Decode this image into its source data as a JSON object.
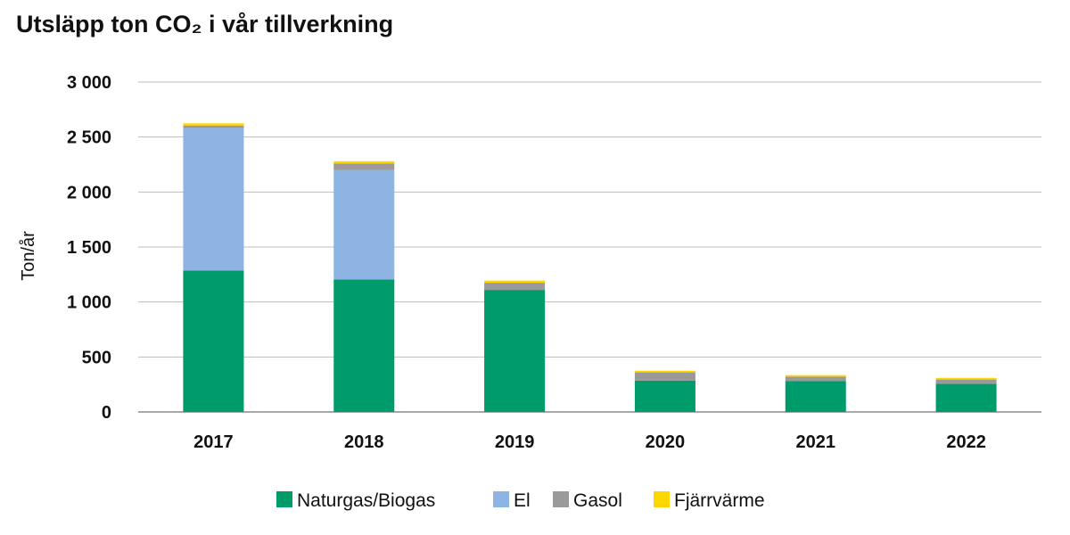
{
  "chart_data": {
    "type": "bar",
    "stacked": true,
    "title": "Utsläpp ton CO₂ i vår tillverkning",
    "ylabel": "Ton/år",
    "xlabel": "",
    "categories": [
      "2017",
      "2018",
      "2019",
      "2020",
      "2021",
      "2022"
    ],
    "ylim": [
      0,
      3000
    ],
    "yticks": [
      0,
      500,
      1000,
      1500,
      2000,
      2500,
      3000
    ],
    "ytick_labels": [
      "0",
      "500",
      "1 000",
      "1 500",
      "2 000",
      "2 500",
      "3 000"
    ],
    "grid": true,
    "legend_position": "bottom",
    "series": [
      {
        "name": "Naturgas/Biogas",
        "color": "#009B6A",
        "values": [
          1285,
          1205,
          1110,
          285,
          280,
          255
        ]
      },
      {
        "name": "El",
        "color": "#8DB4E2",
        "values": [
          1295,
          995,
          0,
          0,
          0,
          0
        ]
      },
      {
        "name": "Gasol",
        "color": "#9A9A9A",
        "values": [
          25,
          60,
          65,
          75,
          40,
          40
        ]
      },
      {
        "name": "Fjärrvärme",
        "color": "#FFD700",
        "values": [
          20,
          20,
          20,
          15,
          15,
          15
        ]
      }
    ]
  }
}
